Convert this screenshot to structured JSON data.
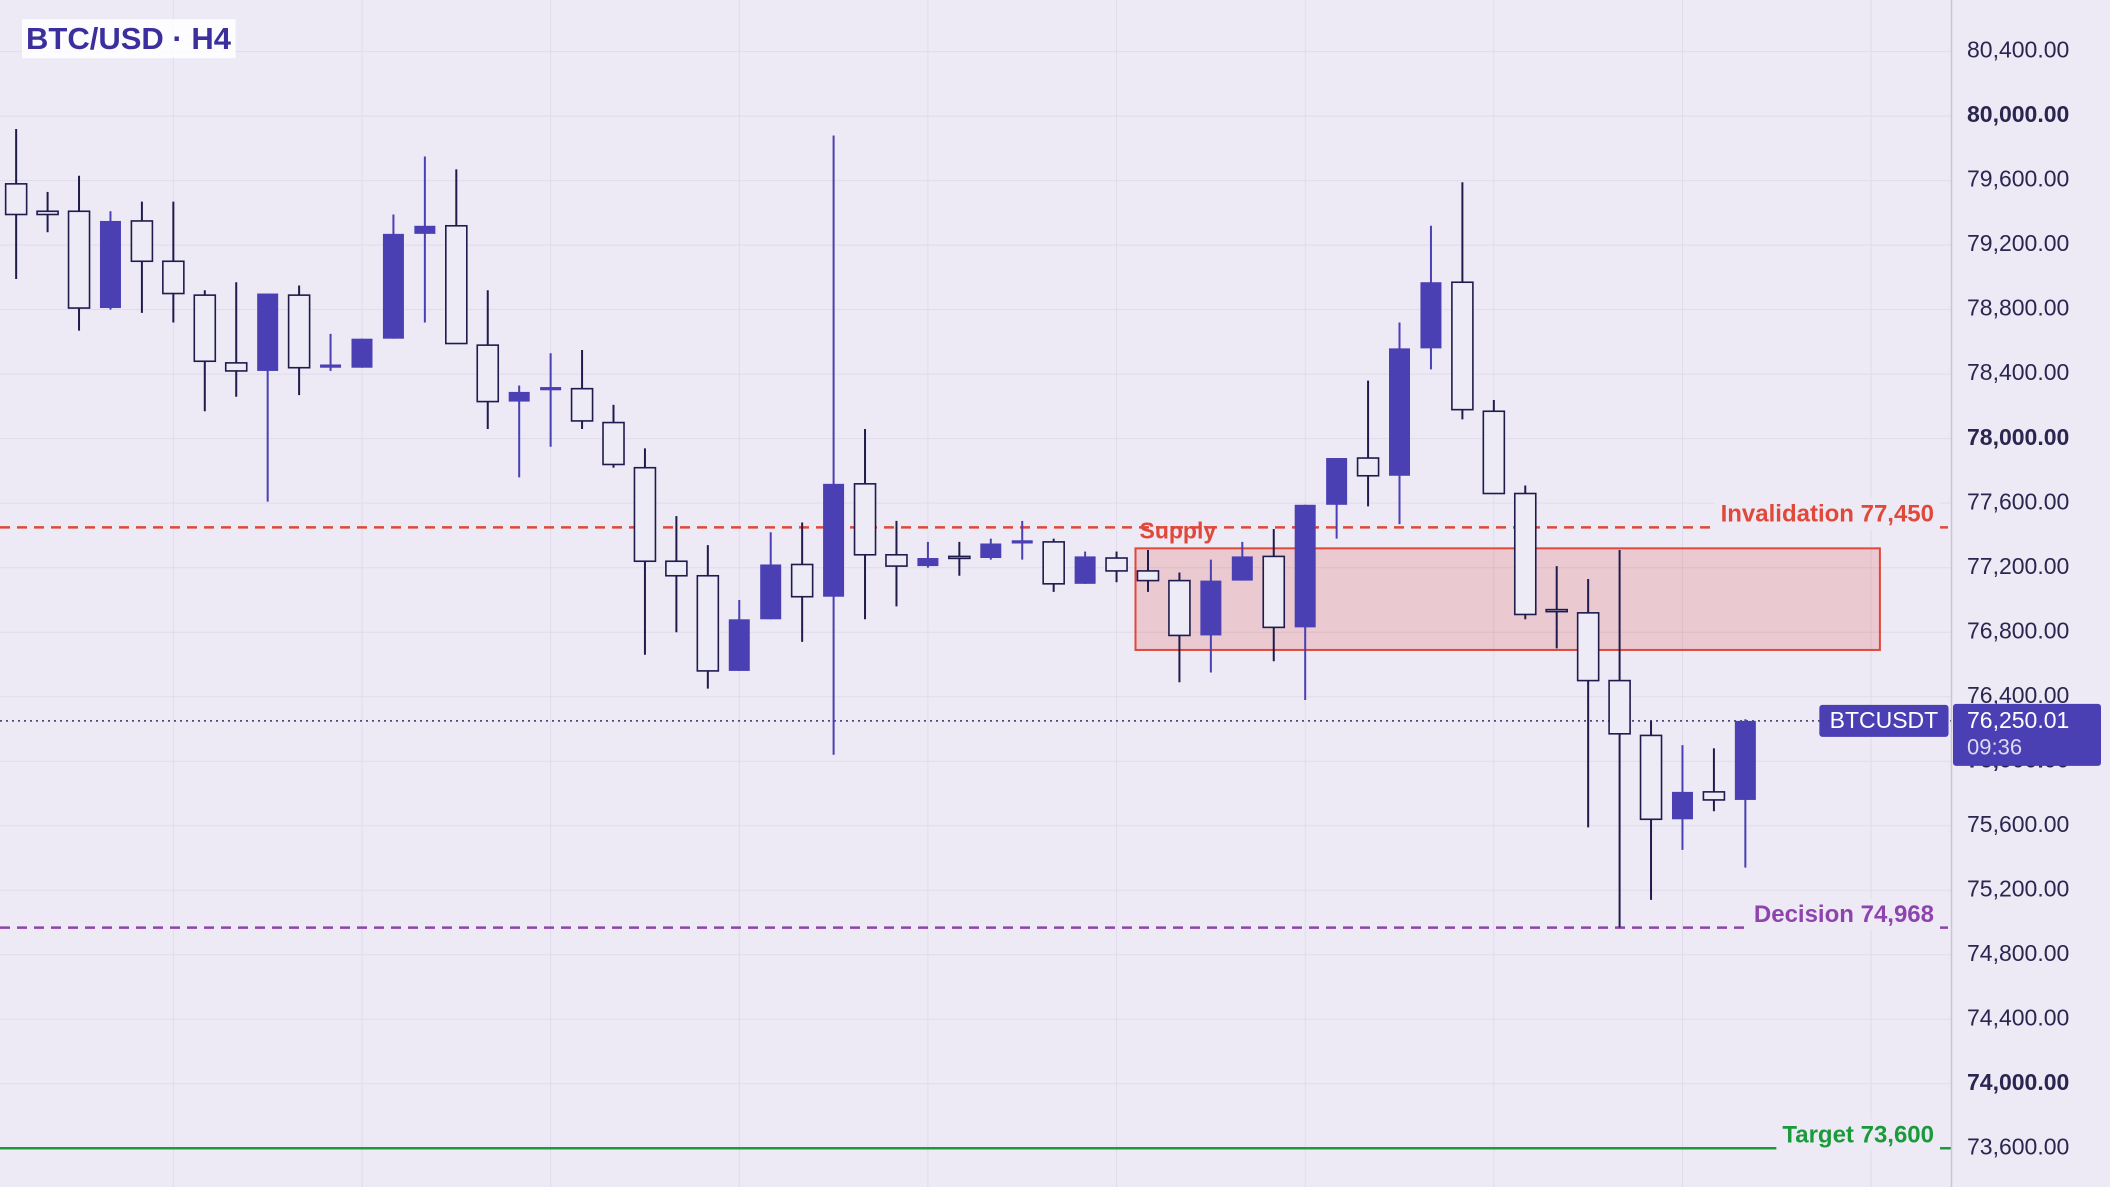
{
  "chart_data": {
    "type": "candlestick",
    "title": "BTC/USD · H4",
    "ylim": [
      73360,
      80720
    ],
    "yticks": [
      {
        "value": 80400,
        "label": "80,400.00"
      },
      {
        "value": 80000,
        "label": "80,000.00"
      },
      {
        "value": 79600,
        "label": "79,600.00"
      },
      {
        "value": 79200,
        "label": "79,200.00"
      },
      {
        "value": 78800,
        "label": "78,800.00"
      },
      {
        "value": 78400,
        "label": "78,400.00"
      },
      {
        "value": 78000,
        "label": "78,000.00"
      },
      {
        "value": 77600,
        "label": "77,600.00"
      },
      {
        "value": 77200,
        "label": "77,200.00"
      },
      {
        "value": 76800,
        "label": "76,800.00"
      },
      {
        "value": 76400,
        "label": "76,400.00"
      },
      {
        "value": 76000,
        "label": "76,000.00"
      },
      {
        "value": 75600,
        "label": "75,600.00"
      },
      {
        "value": 75200,
        "label": "75,200.00"
      },
      {
        "value": 74800,
        "label": "74,800.00"
      },
      {
        "value": 74400,
        "label": "74,400.00"
      },
      {
        "value": 74000,
        "label": "74,000.00"
      },
      {
        "value": 73600,
        "label": "73,600.00"
      }
    ],
    "grid": true,
    "ohlc": {
      "up_color": "#4a3fb3",
      "down_color": "#ecebf6",
      "outline": "#1f1b4d",
      "open": [
        79580,
        79410,
        79410,
        78810,
        79350,
        79100,
        78890,
        78470,
        78420,
        78890,
        78440,
        78440,
        78620,
        79270,
        79320,
        78580,
        78230,
        78300,
        78310,
        78100,
        77820,
        77240,
        77150,
        76560,
        76880,
        77220,
        77020,
        77720,
        77280,
        77210,
        77270,
        77260,
        77350,
        77360,
        77100,
        77260,
        77180,
        77120,
        76780,
        77120,
        77270,
        76830,
        77590,
        77880,
        77770,
        78560,
        78970,
        78170,
        77660,
        76940,
        76920,
        76500,
        76160,
        75640,
        75810,
        75760
      ],
      "high": [
        79920,
        79530,
        79630,
        79410,
        79470,
        79470,
        78920,
        78970,
        78900,
        78950,
        78650,
        78620,
        79390,
        79750,
        79670,
        78920,
        78330,
        78530,
        78550,
        78210,
        77940,
        77520,
        77340,
        77000,
        77420,
        77480,
        79880,
        78060,
        77490,
        77360,
        77360,
        77380,
        77490,
        77380,
        77300,
        77300,
        77310,
        77170,
        77250,
        77360,
        77440,
        77590,
        77880,
        78360,
        78720,
        79320,
        79590,
        78240,
        77710,
        77210,
        77130,
        77310,
        76250,
        76100,
        76080,
        76260
      ],
      "low": [
        78990,
        79280,
        78670,
        78800,
        78780,
        78720,
        78170,
        78260,
        77610,
        78270,
        78420,
        78440,
        78620,
        78720,
        78590,
        78060,
        77760,
        77950,
        78060,
        77820,
        76660,
        76800,
        76450,
        76560,
        76880,
        76740,
        76040,
        76880,
        76960,
        77200,
        77150,
        77250,
        77250,
        77050,
        77100,
        77110,
        77050,
        76490,
        76550,
        77120,
        76620,
        76380,
        77380,
        77580,
        77470,
        78430,
        78120,
        77660,
        76880,
        76700,
        75590,
        74970,
        75140,
        75450,
        75690,
        75340
      ],
      "close": [
        79390,
        79390,
        78810,
        79350,
        79100,
        78900,
        78480,
        78420,
        78900,
        78440,
        78460,
        78620,
        79270,
        79320,
        78590,
        78230,
        78290,
        78320,
        78110,
        77840,
        77240,
        77150,
        76560,
        76880,
        77220,
        77020,
        77720,
        77280,
        77210,
        77260,
        77260,
        77350,
        77370,
        77100,
        77270,
        77180,
        77120,
        76780,
        77120,
        77270,
        76830,
        77590,
        77880,
        77770,
        78560,
        78970,
        78180,
        77660,
        76910,
        76930,
        76500,
        76170,
        75640,
        75810,
        75760,
        76250
      ]
    },
    "zone": {
      "label": "Supply",
      "top": 77320,
      "bottom": 76690,
      "color": "#e0483a"
    },
    "levels": [
      {
        "label": "Invalidation 77,450",
        "value": 77450,
        "color": "#e0483a",
        "style": "dashed"
      },
      {
        "label": "Decision 74,968",
        "value": 74968,
        "color": "#8e44ad",
        "style": "dashed"
      },
      {
        "label": "Target 73,600",
        "value": 73600,
        "color": "#1a9a3a",
        "style": "solid"
      }
    ],
    "last_price": {
      "symbol": "BTCUSDT",
      "value": 76250.01,
      "label": "76,250.01",
      "countdown": "09:36",
      "color": "#4a3fb3"
    }
  }
}
